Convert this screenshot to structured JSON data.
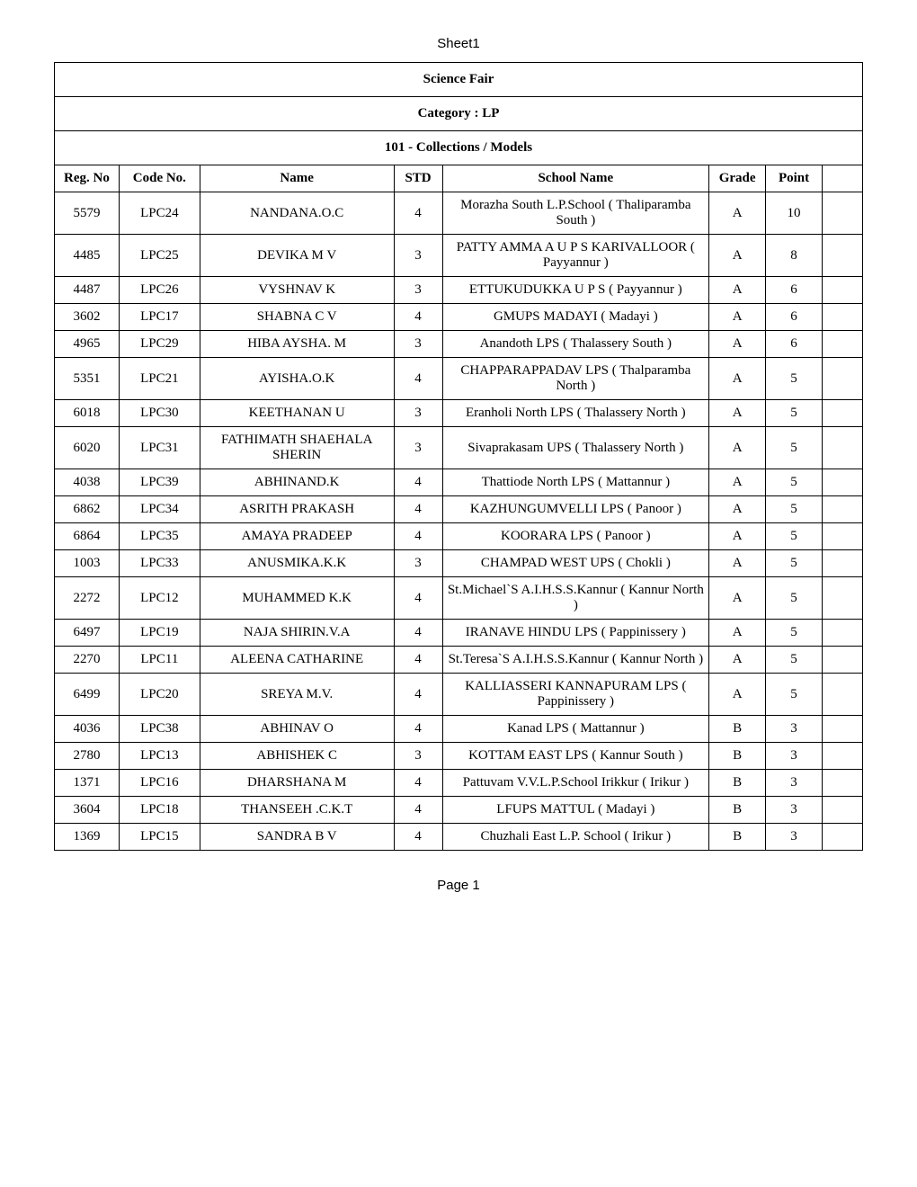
{
  "sheet_label": "Sheet1",
  "header": {
    "title": "Science Fair",
    "category": "Category : LP",
    "event": "101 - Collections / Models"
  },
  "columns": {
    "regno": "Reg. No",
    "codeno": "Code No.",
    "name": "Name",
    "std": "STD",
    "school": "School Name",
    "grade": "Grade",
    "point": "Point"
  },
  "rows": [
    {
      "regno": "5579",
      "codeno": "LPC24",
      "name": "NANDANA.O.C",
      "std": "4",
      "school": "Morazha South L.P.School ( Thaliparamba South )",
      "grade": "A",
      "point": "10"
    },
    {
      "regno": "4485",
      "codeno": "LPC25",
      "name": "DEVIKA M V",
      "std": "3",
      "school": "PATTY AMMA A U P S KARIVALLOOR ( Payyannur )",
      "grade": "A",
      "point": "8"
    },
    {
      "regno": "4487",
      "codeno": "LPC26",
      "name": "VYSHNAV K",
      "std": "3",
      "school": "ETTUKUDUKKA U P S ( Payyannur )",
      "grade": "A",
      "point": "6"
    },
    {
      "regno": "3602",
      "codeno": "LPC17",
      "name": "SHABNA C V",
      "std": "4",
      "school": "GMUPS MADAYI ( Madayi )",
      "grade": "A",
      "point": "6"
    },
    {
      "regno": "4965",
      "codeno": "LPC29",
      "name": "HIBA AYSHA. M",
      "std": "3",
      "school": "Anandoth LPS ( Thalassery South )",
      "grade": "A",
      "point": "6"
    },
    {
      "regno": "5351",
      "codeno": "LPC21",
      "name": "AYISHA.O.K",
      "std": "4",
      "school": "CHAPPARAPPADAV LPS ( Thalparamba North )",
      "grade": "A",
      "point": "5"
    },
    {
      "regno": "6018",
      "codeno": "LPC30",
      "name": "KEETHANAN U",
      "std": "3",
      "school": "Eranholi North LPS ( Thalassery North )",
      "grade": "A",
      "point": "5"
    },
    {
      "regno": "6020",
      "codeno": "LPC31",
      "name": "FATHIMATH SHAEHALA SHERIN",
      "std": "3",
      "school": "Sivaprakasam UPS ( Thalassery North )",
      "grade": "A",
      "point": "5"
    },
    {
      "regno": "4038",
      "codeno": "LPC39",
      "name": "ABHINAND.K",
      "std": "4",
      "school": "Thattiode North LPS ( Mattannur )",
      "grade": "A",
      "point": "5"
    },
    {
      "regno": "6862",
      "codeno": "LPC34",
      "name": "ASRITH PRAKASH",
      "std": "4",
      "school": "KAZHUNGUMVELLI LPS ( Panoor )",
      "grade": "A",
      "point": "5"
    },
    {
      "regno": "6864",
      "codeno": "LPC35",
      "name": "AMAYA PRADEEP",
      "std": "4",
      "school": "KOORARA LPS ( Panoor )",
      "grade": "A",
      "point": "5"
    },
    {
      "regno": "1003",
      "codeno": "LPC33",
      "name": "ANUSMIKA.K.K",
      "std": "3",
      "school": "CHAMPAD WEST UPS ( Chokli )",
      "grade": "A",
      "point": "5"
    },
    {
      "regno": "2272",
      "codeno": "LPC12",
      "name": "MUHAMMED K.K",
      "std": "4",
      "school": "St.Michael`S A.I.H.S.S.Kannur ( Kannur North )",
      "grade": "A",
      "point": "5"
    },
    {
      "regno": "6497",
      "codeno": "LPC19",
      "name": "NAJA SHIRIN.V.A",
      "std": "4",
      "school": "IRANAVE HINDU LPS ( Pappinissery )",
      "grade": "A",
      "point": "5"
    },
    {
      "regno": "2270",
      "codeno": "LPC11",
      "name": "ALEENA CATHARINE",
      "std": "4",
      "school": "St.Teresa`S A.I.H.S.S.Kannur ( Kannur North )",
      "grade": "A",
      "point": "5"
    },
    {
      "regno": "6499",
      "codeno": "LPC20",
      "name": "SREYA M.V.",
      "std": "4",
      "school": "KALLIASSERI KANNAPURAM LPS ( Pappinissery )",
      "grade": "A",
      "point": "5"
    },
    {
      "regno": "4036",
      "codeno": "LPC38",
      "name": "ABHINAV O",
      "std": "4",
      "school": "Kanad LPS ( Mattannur )",
      "grade": "B",
      "point": "3"
    },
    {
      "regno": "2780",
      "codeno": "LPC13",
      "name": "ABHISHEK C",
      "std": "3",
      "school": "KOTTAM EAST LPS ( Kannur South )",
      "grade": "B",
      "point": "3"
    },
    {
      "regno": "1371",
      "codeno": "LPC16",
      "name": "DHARSHANA M",
      "std": "4",
      "school": "Pattuvam V.V.L.P.School Irikkur ( Irikur )",
      "grade": "B",
      "point": "3"
    },
    {
      "regno": "3604",
      "codeno": "LPC18",
      "name": "THANSEEH .C.K.T",
      "std": "4",
      "school": "LFUPS MATTUL ( Madayi )",
      "grade": "B",
      "point": "3"
    },
    {
      "regno": "1369",
      "codeno": "LPC15",
      "name": "SANDRA B V",
      "std": "4",
      "school": "Chuzhali East L.P. School ( Irikur )",
      "grade": "B",
      "point": "3"
    }
  ],
  "page_label": "Page 1"
}
